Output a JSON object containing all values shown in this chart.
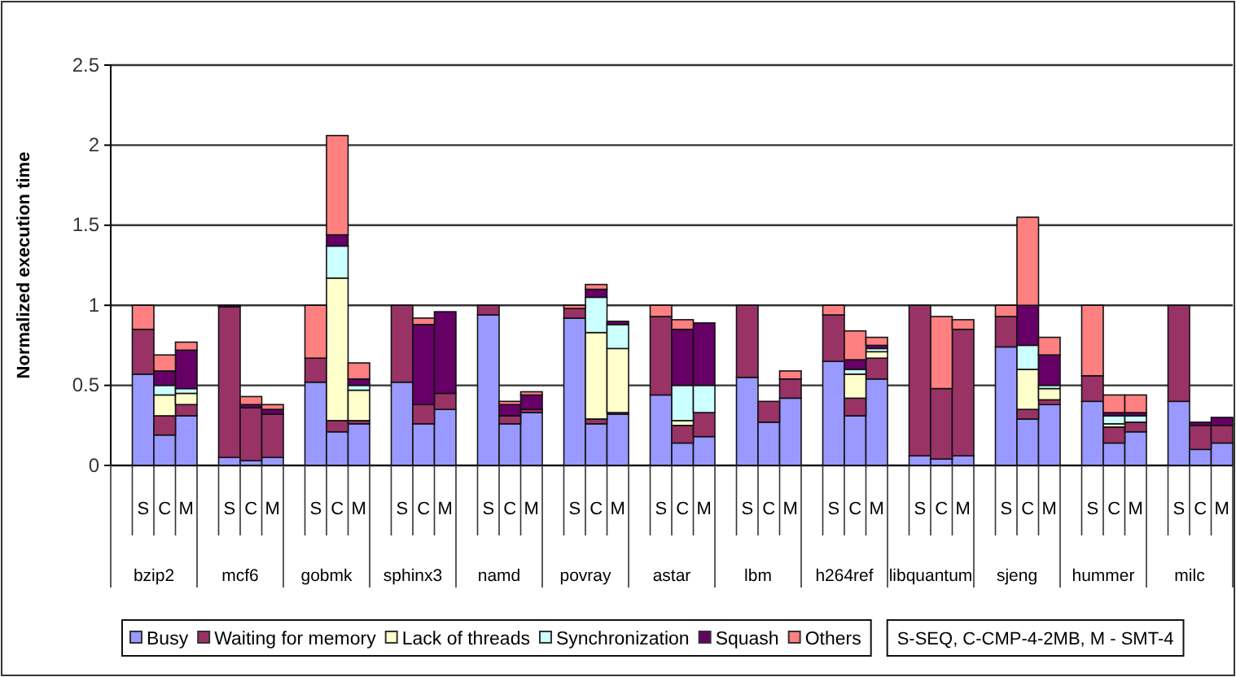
{
  "chart_data": {
    "type": "bar",
    "stacked": true,
    "ylabel": "Normalized execution time",
    "categories": [
      null,
      "S",
      "C",
      "M",
      null,
      "S",
      "C",
      "M",
      null,
      "S",
      "C",
      "M",
      null,
      "S",
      "C",
      "M",
      null,
      "S",
      "C",
      "M",
      null,
      "S",
      "C",
      "M",
      null,
      "S",
      "C",
      "M",
      null,
      "S",
      "C",
      "M",
      null,
      "S",
      "C",
      "M",
      null,
      "S",
      "C",
      "M",
      null,
      "S",
      "C",
      "M",
      null,
      "S",
      "C",
      "M",
      null,
      "S",
      "C",
      "M"
    ],
    "series": [
      {
        "name": "Busy",
        "color": "#9999ff",
        "values": [
          null,
          0.57,
          0.19,
          0.31,
          null,
          0.05,
          0.03,
          0.05,
          null,
          0.52,
          0.21,
          0.26,
          null,
          0.52,
          0.26,
          0.35,
          null,
          0.94,
          0.26,
          0.33,
          null,
          0.92,
          0.26,
          0.32,
          null,
          0.44,
          0.14,
          0.18,
          null,
          0.55,
          0.27,
          0.42,
          null,
          0.65,
          0.31,
          0.54,
          null,
          0.06,
          0.04,
          0.06,
          null,
          0.74,
          0.29,
          0.38,
          null,
          0.4,
          0.14,
          0.21,
          null,
          0.4,
          0.1,
          0.14
        ]
      },
      {
        "name": "Waiting for memory",
        "color": "#993366",
        "values": [
          null,
          0.28,
          0.12,
          0.07,
          null,
          0.94,
          0.33,
          0.27,
          null,
          0.15,
          0.07,
          0.02,
          null,
          0.48,
          0.12,
          0.1,
          null,
          0.06,
          0.05,
          0.02,
          null,
          0.06,
          0.03,
          0.01,
          null,
          0.49,
          0.11,
          0.15,
          null,
          0.45,
          0.13,
          0.12,
          null,
          0.29,
          0.11,
          0.13,
          null,
          0.94,
          0.44,
          0.79,
          null,
          0.19,
          0.06,
          0.03,
          null,
          0.16,
          0.1,
          0.06,
          null,
          0.6,
          0.15,
          0.11
        ]
      },
      {
        "name": "Lack of threads",
        "color": "#ffffcc",
        "values": [
          null,
          0,
          0.13,
          0.07,
          null,
          0,
          0,
          0,
          null,
          0,
          0.89,
          0.19,
          null,
          0,
          0,
          0,
          null,
          0,
          0,
          0,
          null,
          0,
          0.54,
          0.4,
          null,
          0,
          0.03,
          0,
          null,
          0,
          0,
          0,
          null,
          0,
          0.15,
          0.04,
          null,
          0,
          0,
          0,
          null,
          0,
          0.25,
          0.07,
          null,
          0,
          0.02,
          null,
          null,
          0,
          0,
          0
        ]
      },
      {
        "name": "Synchronization",
        "color": "#ccffff",
        "values": [
          null,
          0,
          0.06,
          0.03,
          null,
          0,
          0,
          0,
          null,
          0,
          0.2,
          0.03,
          null,
          0,
          0,
          0,
          null,
          0,
          0,
          0,
          null,
          0,
          0.22,
          0.15,
          null,
          0,
          0.22,
          0.17,
          null,
          0,
          0,
          0,
          null,
          0,
          0.03,
          0.02,
          null,
          0,
          0,
          0,
          null,
          0,
          0.15,
          0.02,
          null,
          0,
          0.05,
          0.04,
          null,
          0,
          0,
          0
        ]
      },
      {
        "name": "Squash",
        "color": "#660066",
        "values": [
          null,
          0,
          0.09,
          0.24,
          null,
          0.01,
          0.02,
          0.03,
          null,
          0,
          0.07,
          0.04,
          null,
          0,
          0.5,
          0.51,
          null,
          0,
          0.07,
          0.09,
          null,
          0,
          0.05,
          0.02,
          null,
          0,
          0.35,
          0.39,
          null,
          0,
          0,
          0,
          null,
          0,
          0.06,
          0.02,
          null,
          0,
          0,
          0,
          null,
          0,
          0.25,
          0.19,
          null,
          0,
          0.02,
          0.02,
          null,
          0,
          0.02,
          0.05
        ]
      },
      {
        "name": "Others",
        "color": "#ff8080",
        "values": [
          null,
          0.15,
          0.1,
          0.05,
          null,
          0,
          0.05,
          0.03,
          null,
          0.33,
          0.62,
          0.1,
          null,
          0,
          0.04,
          0,
          null,
          null,
          0.02,
          0.02,
          null,
          0.02,
          0.03,
          0,
          null,
          0.07,
          0.06,
          null,
          null,
          0,
          0,
          0.05,
          null,
          0.06,
          0.18,
          0.05,
          null,
          0,
          0.45,
          0.06,
          null,
          0.07,
          0.55,
          0.11,
          null,
          0.44,
          0.11,
          0.11,
          null,
          0,
          0,
          0
        ]
      }
    ],
    "ylim": [
      0,
      2.5
    ],
    "yticks": [
      0,
      0.5,
      1,
      1.5,
      2,
      2.5
    ],
    "grid": "y",
    "legend": "bottom",
    "annotations": [
      "bzip2",
      "mcf6",
      "gobmk",
      "sphinx3",
      "namd",
      "povray",
      "astar",
      "lbm",
      "h264ref",
      "libquantum",
      "sjeng",
      "hummer",
      "milc",
      "S-SEQ, C-CMP-4-2MB, M - SMT-4"
    ]
  }
}
